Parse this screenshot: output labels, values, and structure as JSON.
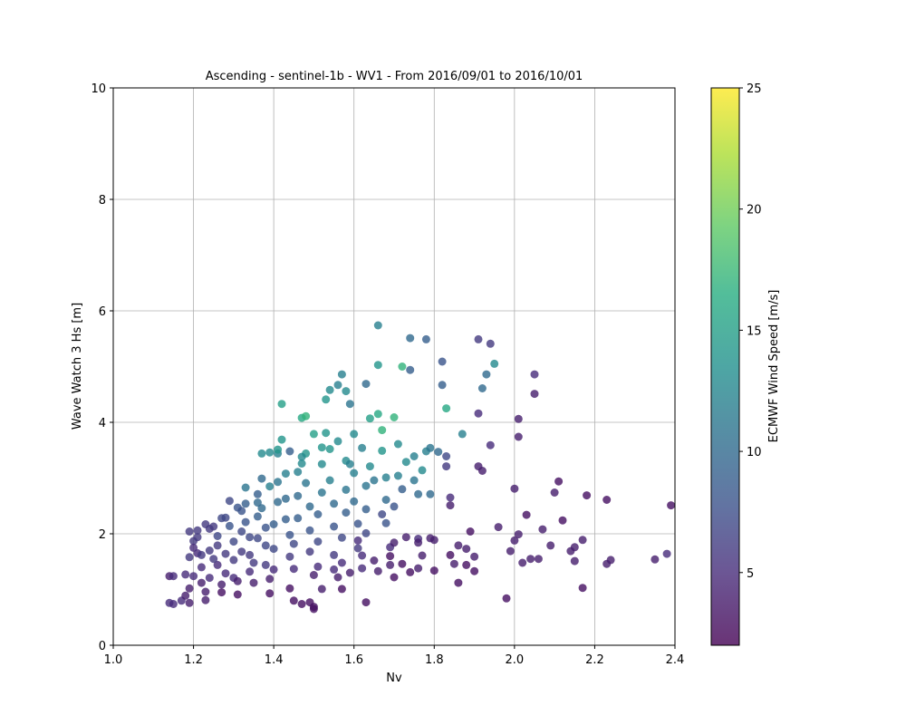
{
  "chart_data": {
    "type": "scatter",
    "title": "Ascending - sentinel-1b - WV1 - From 2016/09/01 to 2016/10/01",
    "xlabel": "Nv",
    "ylabel": "Wave Watch 3 Hs [m]",
    "xlim": [
      1.0,
      2.4
    ],
    "ylim": [
      0,
      10
    ],
    "xticks": [
      "1.0",
      "1.2",
      "1.4",
      "1.6",
      "1.8",
      "2.0",
      "2.2",
      "2.4"
    ],
    "yticks": [
      "0",
      "2",
      "4",
      "6",
      "8",
      "10"
    ],
    "grid": true,
    "colorbar": {
      "label": "ECMWF Wind Speed [m/s]",
      "colormap": "viridis",
      "range": [
        2,
        25
      ],
      "ticks": [
        "5",
        "10",
        "15",
        "20",
        "25"
      ]
    },
    "points": [
      [
        1.14,
        1.24,
        4
      ],
      [
        1.15,
        1.24,
        5
      ],
      [
        1.14,
        0.76,
        5
      ],
      [
        1.15,
        0.74,
        5
      ],
      [
        1.17,
        0.8,
        5
      ],
      [
        1.18,
        1.27,
        5
      ],
      [
        1.18,
        0.89,
        4
      ],
      [
        1.19,
        0.76,
        4
      ],
      [
        1.19,
        1.02,
        4
      ],
      [
        1.2,
        1.24,
        5
      ],
      [
        1.19,
        1.58,
        6
      ],
      [
        1.2,
        1.87,
        6
      ],
      [
        1.19,
        2.04,
        6
      ],
      [
        1.21,
        2.06,
        6
      ],
      [
        1.21,
        1.65,
        5
      ],
      [
        1.22,
        1.4,
        5
      ],
      [
        1.22,
        1.12,
        4
      ],
      [
        1.23,
        0.96,
        4
      ],
      [
        1.23,
        0.81,
        4
      ],
      [
        1.24,
        1.21,
        5
      ],
      [
        1.24,
        1.7,
        6
      ],
      [
        1.24,
        2.09,
        6
      ],
      [
        1.25,
        2.13,
        6
      ],
      [
        1.26,
        1.96,
        7
      ],
      [
        1.26,
        1.79,
        6
      ],
      [
        1.26,
        1.44,
        5
      ],
      [
        1.27,
        1.09,
        4
      ],
      [
        1.27,
        0.95,
        3
      ],
      [
        1.28,
        1.29,
        5
      ],
      [
        1.28,
        1.64,
        6
      ],
      [
        1.28,
        2.29,
        7
      ],
      [
        1.29,
        2.59,
        7
      ],
      [
        1.29,
        2.14,
        8
      ],
      [
        1.3,
        1.86,
        7
      ],
      [
        1.3,
        1.53,
        6
      ],
      [
        1.3,
        1.21,
        5
      ],
      [
        1.31,
        0.91,
        3
      ],
      [
        1.31,
        1.15,
        4
      ],
      [
        1.32,
        1.68,
        6
      ],
      [
        1.32,
        2.04,
        7
      ],
      [
        1.32,
        2.41,
        8
      ],
      [
        1.33,
        2.54,
        9
      ],
      [
        1.33,
        2.21,
        8
      ],
      [
        1.34,
        1.94,
        7
      ],
      [
        1.34,
        1.62,
        6
      ],
      [
        1.34,
        1.32,
        5
      ],
      [
        1.35,
        1.12,
        4
      ],
      [
        1.35,
        1.48,
        6
      ],
      [
        1.36,
        1.92,
        7
      ],
      [
        1.36,
        2.31,
        9
      ],
      [
        1.36,
        2.71,
        9
      ],
      [
        1.37,
        2.99,
        10
      ],
      [
        1.37,
        2.46,
        10
      ],
      [
        1.38,
        2.11,
        8
      ],
      [
        1.38,
        1.79,
        7
      ],
      [
        1.38,
        1.44,
        6
      ],
      [
        1.39,
        1.19,
        4
      ],
      [
        1.39,
        0.93,
        3
      ],
      [
        1.4,
        1.36,
        5
      ],
      [
        1.4,
        1.73,
        7
      ],
      [
        1.4,
        2.17,
        9
      ],
      [
        1.41,
        2.57,
        10
      ],
      [
        1.41,
        2.93,
        11
      ],
      [
        1.41,
        3.44,
        12
      ],
      [
        1.42,
        3.69,
        14
      ],
      [
        1.42,
        4.33,
        15
      ],
      [
        1.43,
        3.08,
        12
      ],
      [
        1.43,
        2.63,
        10
      ],
      [
        1.43,
        2.26,
        9
      ],
      [
        1.44,
        1.98,
        8
      ],
      [
        1.44,
        1.59,
        6
      ],
      [
        1.44,
        1.02,
        3
      ],
      [
        1.45,
        1.37,
        5
      ],
      [
        1.45,
        1.82,
        7
      ],
      [
        1.46,
        2.28,
        9
      ],
      [
        1.46,
        2.68,
        10
      ],
      [
        1.46,
        3.11,
        12
      ],
      [
        1.47,
        3.26,
        13
      ],
      [
        1.47,
        4.08,
        16
      ],
      [
        1.48,
        4.11,
        17
      ],
      [
        1.48,
        3.44,
        14
      ],
      [
        1.48,
        2.91,
        11
      ],
      [
        1.49,
        2.49,
        10
      ],
      [
        1.49,
        2.06,
        8
      ],
      [
        1.49,
        1.68,
        6
      ],
      [
        1.5,
        1.26,
        4
      ],
      [
        1.5,
        0.65,
        3
      ],
      [
        1.5,
        0.69,
        3
      ],
      [
        1.49,
        0.77,
        3
      ],
      [
        1.51,
        1.41,
        5
      ],
      [
        1.51,
        1.86,
        7
      ],
      [
        1.51,
        2.35,
        9
      ],
      [
        1.52,
        2.74,
        11
      ],
      [
        1.52,
        3.25,
        13
      ],
      [
        1.52,
        3.55,
        14
      ],
      [
        1.53,
        4.41,
        14
      ],
      [
        1.54,
        4.58,
        13
      ],
      [
        1.54,
        3.52,
        14
      ],
      [
        1.54,
        2.96,
        12
      ],
      [
        1.55,
        2.54,
        10
      ],
      [
        1.55,
        2.13,
        8
      ],
      [
        1.55,
        1.62,
        6
      ],
      [
        1.56,
        1.22,
        4
      ],
      [
        1.57,
        1.01,
        3
      ],
      [
        1.57,
        1.48,
        5
      ],
      [
        1.57,
        1.93,
        7
      ],
      [
        1.58,
        2.38,
        9
      ],
      [
        1.58,
        2.79,
        11
      ],
      [
        1.58,
        3.31,
        13
      ],
      [
        1.59,
        4.33,
        11
      ],
      [
        1.57,
        4.86,
        12
      ],
      [
        1.56,
        4.67,
        12
      ],
      [
        1.58,
        4.56,
        13
      ],
      [
        1.6,
        3.79,
        13
      ],
      [
        1.6,
        3.09,
        12
      ],
      [
        1.6,
        2.58,
        10
      ],
      [
        1.61,
        2.18,
        8
      ],
      [
        1.61,
        1.74,
        6
      ],
      [
        1.62,
        1.38,
        5
      ],
      [
        1.62,
        1.61,
        5
      ],
      [
        1.63,
        2.01,
        7
      ],
      [
        1.63,
        2.44,
        9
      ],
      [
        1.63,
        2.86,
        11
      ],
      [
        1.64,
        3.21,
        13
      ],
      [
        1.64,
        4.07,
        15
      ],
      [
        1.63,
        4.69,
        10
      ],
      [
        1.66,
        5.74,
        12
      ],
      [
        1.66,
        5.03,
        14
      ],
      [
        1.66,
        4.15,
        16
      ],
      [
        1.67,
        3.86,
        17
      ],
      [
        1.67,
        3.49,
        14
      ],
      [
        1.68,
        3.01,
        12
      ],
      [
        1.68,
        2.61,
        10
      ],
      [
        1.68,
        2.19,
        8
      ],
      [
        1.69,
        1.76,
        5
      ],
      [
        1.69,
        1.44,
        4
      ],
      [
        1.7,
        1.22,
        3
      ],
      [
        1.7,
        1.84,
        4
      ],
      [
        1.7,
        2.49,
        8
      ],
      [
        1.71,
        3.04,
        12
      ],
      [
        1.71,
        3.61,
        13
      ],
      [
        1.7,
        4.09,
        17
      ],
      [
        1.72,
        5.0,
        17
      ],
      [
        1.74,
        5.51,
        10
      ],
      [
        1.74,
        4.94,
        9
      ],
      [
        1.75,
        3.39,
        12
      ],
      [
        1.75,
        2.96,
        11
      ],
      [
        1.76,
        2.71,
        10
      ],
      [
        1.76,
        1.91,
        5
      ],
      [
        1.76,
        1.38,
        4
      ],
      [
        1.77,
        1.61,
        4
      ],
      [
        1.78,
        3.48,
        12
      ],
      [
        1.78,
        5.49,
        9
      ],
      [
        1.79,
        3.54,
        11
      ],
      [
        1.79,
        2.71,
        10
      ],
      [
        1.8,
        1.89,
        4
      ],
      [
        1.8,
        1.34,
        3
      ],
      [
        1.81,
        3.47,
        10
      ],
      [
        1.82,
        5.09,
        8
      ],
      [
        1.82,
        4.67,
        9
      ],
      [
        1.83,
        4.25,
        16
      ],
      [
        1.83,
        3.21,
        6
      ],
      [
        1.83,
        3.39,
        7
      ],
      [
        1.84,
        1.62,
        3
      ],
      [
        1.84,
        2.65,
        5
      ],
      [
        1.84,
        2.51,
        4
      ],
      [
        1.85,
        1.46,
        4
      ],
      [
        1.86,
        1.12,
        3
      ],
      [
        1.86,
        1.79,
        4
      ],
      [
        1.87,
        3.79,
        12
      ],
      [
        1.88,
        1.73,
        4
      ],
      [
        1.88,
        1.44,
        3
      ],
      [
        1.89,
        2.04,
        3
      ],
      [
        1.9,
        1.33,
        3
      ],
      [
        1.9,
        1.59,
        4
      ],
      [
        1.91,
        3.21,
        4
      ],
      [
        1.91,
        5.49,
        6
      ],
      [
        1.91,
        4.16,
        5
      ],
      [
        1.92,
        3.13,
        4
      ],
      [
        1.92,
        4.61,
        10
      ],
      [
        1.93,
        4.86,
        10
      ],
      [
        1.94,
        5.41,
        6
      ],
      [
        1.94,
        3.59,
        5
      ],
      [
        1.95,
        5.05,
        13
      ],
      [
        1.96,
        2.12,
        4
      ],
      [
        1.98,
        0.84,
        3
      ],
      [
        1.99,
        1.69,
        4
      ],
      [
        2.0,
        2.81,
        4
      ],
      [
        2.0,
        1.88,
        4
      ],
      [
        2.01,
        4.06,
        4
      ],
      [
        2.01,
        3.74,
        4
      ],
      [
        2.01,
        1.99,
        4
      ],
      [
        2.02,
        1.48,
        4
      ],
      [
        2.03,
        2.34,
        3
      ],
      [
        2.04,
        1.55,
        4
      ],
      [
        2.05,
        4.86,
        5
      ],
      [
        2.05,
        4.51,
        4
      ],
      [
        2.06,
        1.55,
        4
      ],
      [
        2.07,
        2.08,
        4
      ],
      [
        2.09,
        1.79,
        4
      ],
      [
        2.1,
        2.74,
        4
      ],
      [
        2.11,
        2.94,
        3
      ],
      [
        2.12,
        2.24,
        3
      ],
      [
        2.14,
        1.69,
        4
      ],
      [
        2.15,
        1.51,
        4
      ],
      [
        2.15,
        1.76,
        4
      ],
      [
        2.17,
        1.89,
        4
      ],
      [
        2.17,
        1.03,
        3
      ],
      [
        2.18,
        2.69,
        3
      ],
      [
        2.23,
        1.46,
        4
      ],
      [
        2.23,
        2.61,
        3
      ],
      [
        2.24,
        1.53,
        4
      ],
      [
        2.35,
        1.54,
        4
      ],
      [
        2.38,
        1.64,
        5
      ],
      [
        2.39,
        2.51,
        3
      ],
      [
        1.45,
        0.8,
        3
      ],
      [
        1.47,
        0.74,
        3
      ],
      [
        1.52,
        1.01,
        4
      ],
      [
        1.55,
        1.36,
        5
      ],
      [
        1.59,
        1.3,
        4
      ],
      [
        1.63,
        0.77,
        3
      ],
      [
        1.66,
        1.33,
        4
      ],
      [
        1.72,
        1.46,
        3
      ],
      [
        1.73,
        1.94,
        4
      ],
      [
        1.76,
        1.84,
        4
      ],
      [
        1.79,
        1.92,
        4
      ],
      [
        1.74,
        1.31,
        3
      ],
      [
        1.69,
        1.6,
        3
      ],
      [
        1.65,
        1.52,
        4
      ],
      [
        1.61,
        1.88,
        5
      ],
      [
        1.67,
        2.35,
        7
      ],
      [
        1.72,
        2.8,
        9
      ],
      [
        1.73,
        3.29,
        13
      ],
      [
        1.77,
        3.14,
        13
      ],
      [
        1.65,
        2.96,
        11
      ],
      [
        1.62,
        3.54,
        12
      ],
      [
        1.59,
        3.25,
        12
      ],
      [
        1.56,
        3.66,
        13
      ],
      [
        1.53,
        3.81,
        14
      ],
      [
        1.5,
        3.79,
        15
      ],
      [
        1.47,
        3.38,
        13
      ],
      [
        1.44,
        3.48,
        9
      ],
      [
        1.41,
        3.51,
        14
      ],
      [
        1.39,
        3.46,
        13
      ],
      [
        1.37,
        3.44,
        13
      ],
      [
        1.39,
        2.85,
        12
      ],
      [
        1.36,
        2.56,
        10
      ],
      [
        1.33,
        2.83,
        11
      ],
      [
        1.31,
        2.47,
        8
      ],
      [
        1.27,
        2.28,
        7
      ],
      [
        1.23,
        2.17,
        6
      ],
      [
        1.21,
        1.94,
        6
      ],
      [
        1.2,
        1.75,
        5
      ],
      [
        1.22,
        1.62,
        6
      ],
      [
        1.25,
        1.55,
        6
      ]
    ]
  }
}
